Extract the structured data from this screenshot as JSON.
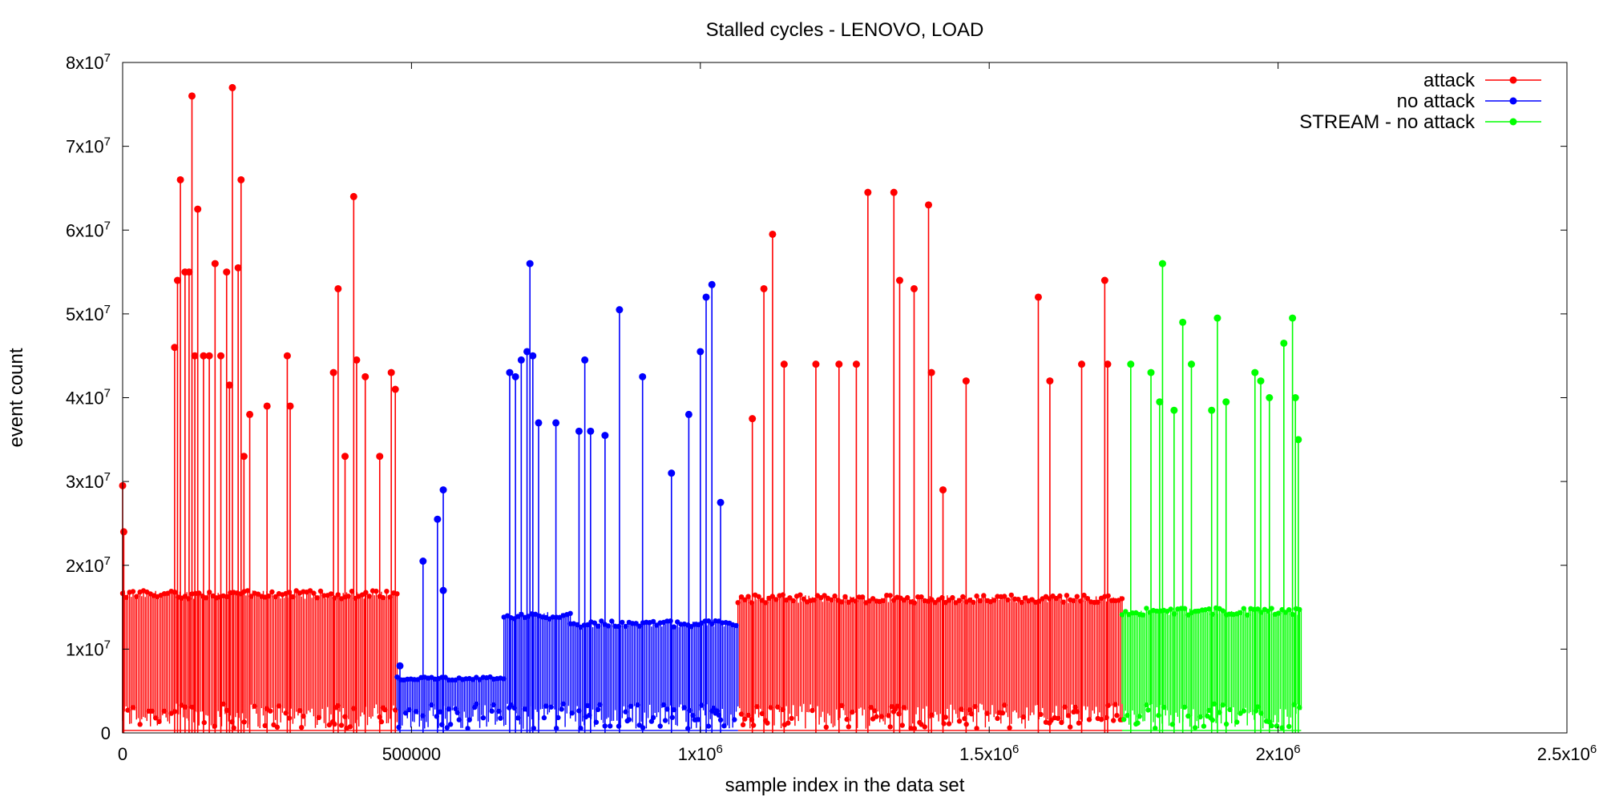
{
  "chart_data": {
    "type": "line",
    "title": "Stalled cycles - LENOVO, LOAD",
    "xlabel": "sample index in the data set",
    "ylabel": "event count",
    "xlim": [
      0,
      2500000
    ],
    "ylim": [
      0,
      80000000
    ],
    "grid": false,
    "legend_position": "top-right",
    "x_ticks": [
      {
        "value": 0,
        "label": "0"
      },
      {
        "value": 500000,
        "label": "500000"
      },
      {
        "value": 1000000,
        "label": "1x10",
        "exp": "6"
      },
      {
        "value": 1500000,
        "label": "1.5x10",
        "exp": "6"
      },
      {
        "value": 2000000,
        "label": "2x10",
        "exp": "6"
      },
      {
        "value": 2500000,
        "label": "2.5x10",
        "exp": "6"
      }
    ],
    "y_ticks": [
      {
        "value": 0,
        "label": "0"
      },
      {
        "value": 10000000,
        "label": "1x10",
        "exp": "7"
      },
      {
        "value": 20000000,
        "label": "2x10",
        "exp": "7"
      },
      {
        "value": 30000000,
        "label": "3x10",
        "exp": "7"
      },
      {
        "value": 40000000,
        "label": "4x10",
        "exp": "7"
      },
      {
        "value": 50000000,
        "label": "5x10",
        "exp": "7"
      },
      {
        "value": 60000000,
        "label": "6x10",
        "exp": "7"
      },
      {
        "value": 70000000,
        "label": "7x10",
        "exp": "7"
      },
      {
        "value": 80000000,
        "label": "8x10",
        "exp": "7"
      }
    ],
    "series": [
      {
        "name": "attack",
        "color": "#ff0000",
        "segments": [
          {
            "x_range": [
              0,
              475000
            ],
            "baseline": 16500000
          },
          {
            "x_range": [
              1065000,
              1730000
            ],
            "baseline": 16000000
          }
        ],
        "peaks": [
          [
            0,
            29500000
          ],
          [
            2000,
            24000000
          ],
          [
            90000,
            46000000
          ],
          [
            95000,
            54000000
          ],
          [
            100000,
            66000000
          ],
          [
            108000,
            55000000
          ],
          [
            115000,
            55000000
          ],
          [
            120000,
            76000000
          ],
          [
            125000,
            45000000
          ],
          [
            130000,
            62500000
          ],
          [
            140000,
            45000000
          ],
          [
            150000,
            45000000
          ],
          [
            160000,
            56000000
          ],
          [
            170000,
            45000000
          ],
          [
            180000,
            55000000
          ],
          [
            185000,
            41500000
          ],
          [
            190000,
            77000000
          ],
          [
            200000,
            55500000
          ],
          [
            205000,
            66000000
          ],
          [
            210000,
            33000000
          ],
          [
            220000,
            38000000
          ],
          [
            250000,
            39000000
          ],
          [
            285000,
            45000000
          ],
          [
            290000,
            39000000
          ],
          [
            365000,
            43000000
          ],
          [
            373000,
            53000000
          ],
          [
            385000,
            33000000
          ],
          [
            400000,
            64000000
          ],
          [
            405000,
            44500000
          ],
          [
            420000,
            42500000
          ],
          [
            445000,
            33000000
          ],
          [
            465000,
            43000000
          ],
          [
            472000,
            41000000
          ],
          [
            1090000,
            37500000
          ],
          [
            1110000,
            53000000
          ],
          [
            1125000,
            59500000
          ],
          [
            1145000,
            44000000
          ],
          [
            1200000,
            44000000
          ],
          [
            1240000,
            44000000
          ],
          [
            1270000,
            44000000
          ],
          [
            1290000,
            64500000
          ],
          [
            1335000,
            64500000
          ],
          [
            1345000,
            54000000
          ],
          [
            1370000,
            53000000
          ],
          [
            1395000,
            63000000
          ],
          [
            1400000,
            43000000
          ],
          [
            1420000,
            29000000
          ],
          [
            1460000,
            42000000
          ],
          [
            1585000,
            52000000
          ],
          [
            1605000,
            42000000
          ],
          [
            1660000,
            44000000
          ],
          [
            1700000,
            54000000
          ],
          [
            1705000,
            44000000
          ]
        ]
      },
      {
        "name": "no attack",
        "color": "#0000ff",
        "segments": [
          {
            "x_range": [
              475000,
              660000
            ],
            "baseline": 6500000
          },
          {
            "x_range": [
              660000,
              775000
            ],
            "baseline": 14000000
          },
          {
            "x_range": [
              775000,
              1065000
            ],
            "baseline": 13000000
          }
        ],
        "peaks": [
          [
            480000,
            8000000
          ],
          [
            520000,
            20500000
          ],
          [
            545000,
            25500000
          ],
          [
            555000,
            29000000
          ],
          [
            555000,
            17000000
          ],
          [
            670000,
            43000000
          ],
          [
            680000,
            42500000
          ],
          [
            690000,
            44500000
          ],
          [
            700000,
            45500000
          ],
          [
            705000,
            56000000
          ],
          [
            710000,
            45000000
          ],
          [
            720000,
            37000000
          ],
          [
            750000,
            37000000
          ],
          [
            790000,
            36000000
          ],
          [
            800000,
            44500000
          ],
          [
            810000,
            36000000
          ],
          [
            835000,
            35500000
          ],
          [
            860000,
            50500000
          ],
          [
            900000,
            42500000
          ],
          [
            950000,
            31000000
          ],
          [
            980000,
            38000000
          ],
          [
            1000000,
            45500000
          ],
          [
            1010000,
            52000000
          ],
          [
            1020000,
            53500000
          ],
          [
            1035000,
            27500000
          ]
        ]
      },
      {
        "name": "STREAM - no attack",
        "color": "#00ff00",
        "segments": [
          {
            "x_range": [
              1730000,
              2040000
            ],
            "baseline": 14500000
          }
        ],
        "peaks": [
          [
            1745000,
            44000000
          ],
          [
            1780000,
            43000000
          ],
          [
            1795000,
            39500000
          ],
          [
            1800000,
            56000000
          ],
          [
            1820000,
            38500000
          ],
          [
            1835000,
            49000000
          ],
          [
            1850000,
            44000000
          ],
          [
            1885000,
            38500000
          ],
          [
            1895000,
            49500000
          ],
          [
            1910000,
            39500000
          ],
          [
            1960000,
            43000000
          ],
          [
            1970000,
            42000000
          ],
          [
            1985000,
            40000000
          ],
          [
            2010000,
            46500000
          ],
          [
            2025000,
            49500000
          ],
          [
            2030000,
            40000000
          ],
          [
            2035000,
            35000000
          ]
        ]
      }
    ]
  }
}
